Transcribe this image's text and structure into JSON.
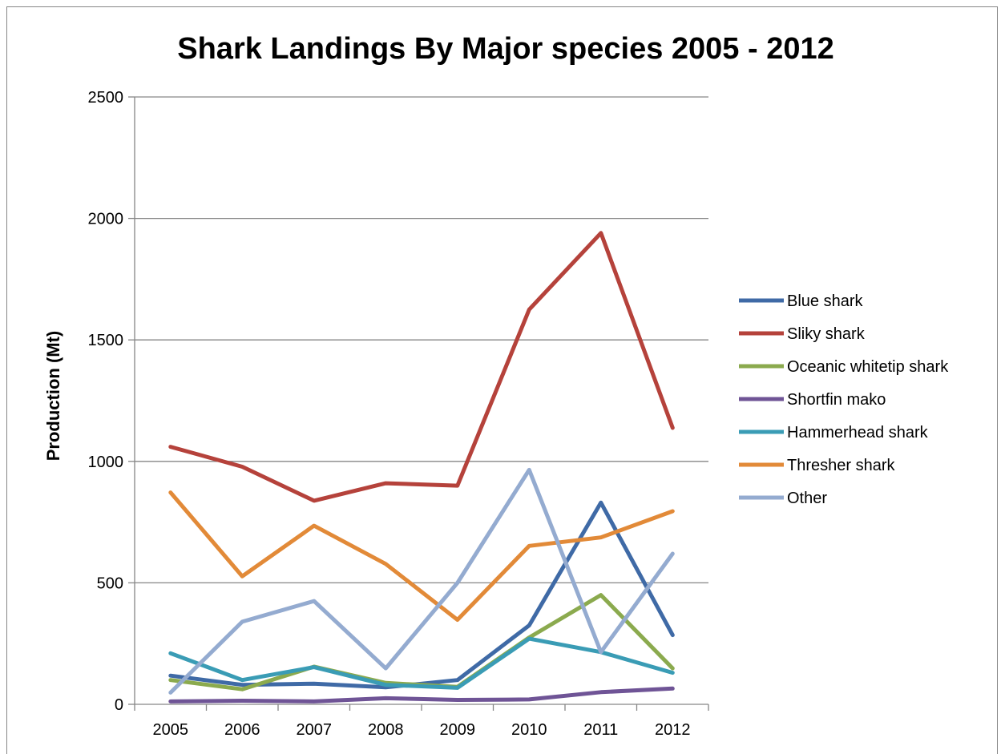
{
  "chart_data": {
    "type": "line",
    "title": "Shark Landings By Major species 2005 - 2012",
    "xlabel": "",
    "ylabel": "Production (Mt)",
    "categories": [
      "2005",
      "2006",
      "2007",
      "2008",
      "2009",
      "2010",
      "2011",
      "2012"
    ],
    "ylim": [
      0,
      2500
    ],
    "yticks": [
      0,
      500,
      1000,
      1500,
      2000,
      2500
    ],
    "grid": true,
    "legend_position": "right",
    "series": [
      {
        "name": "Blue shark",
        "color": "#3F6AA6",
        "values": [
          118,
          80,
          85,
          70,
          100,
          325,
          830,
          285
        ]
      },
      {
        "name": "Sliky shark",
        "color": "#B5423B",
        "values": [
          1060,
          978,
          838,
          910,
          900,
          1625,
          1940,
          1138
        ]
      },
      {
        "name": "Oceanic whitetip shark",
        "color": "#8BAA4E",
        "values": [
          100,
          62,
          155,
          88,
          72,
          275,
          450,
          148
        ]
      },
      {
        "name": "Shortfin mako",
        "color": "#6F5496",
        "values": [
          12,
          15,
          12,
          25,
          18,
          20,
          50,
          65
        ]
      },
      {
        "name": "Hammerhead shark",
        "color": "#3A9CB5",
        "values": [
          210,
          100,
          153,
          80,
          68,
          270,
          215,
          130
        ]
      },
      {
        "name": "Thresher shark",
        "color": "#E28A38",
        "values": [
          872,
          527,
          735,
          578,
          348,
          652,
          687,
          795
        ]
      },
      {
        "name": "Other",
        "color": "#94ABD0",
        "values": [
          48,
          340,
          425,
          148,
          500,
          965,
          215,
          620
        ]
      }
    ]
  }
}
